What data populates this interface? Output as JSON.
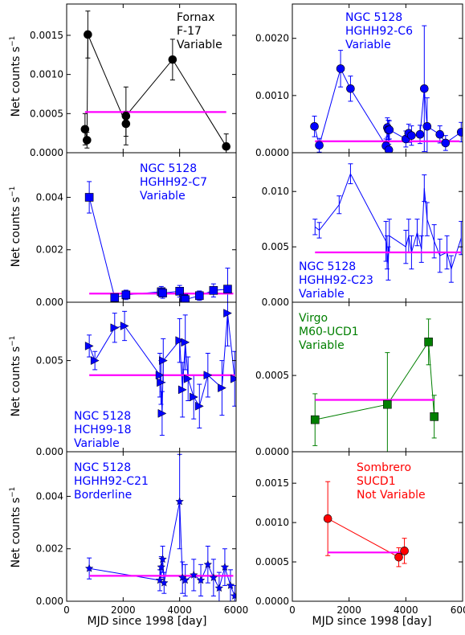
{
  "figure": {
    "ylabel_base": "Net counts s",
    "ylabel_exp": "−1",
    "xlabel": "MJD since 1998 [day]",
    "x_ticks": [
      "0",
      "2000",
      "4000",
      "6000"
    ]
  },
  "chart_data": [
    {
      "type": "scatter",
      "panel": "top-left",
      "annotation": [
        "Fornax",
        "F-17",
        "Variable"
      ],
      "color": "#000000",
      "marker": "circle",
      "xlim": [
        0,
        6000
      ],
      "ylim": [
        0,
        0.0019
      ],
      "yticks": [
        0.0,
        0.0005,
        0.001,
        0.0015
      ],
      "ytick_labels": [
        "0.0000",
        "0.0005",
        "0.0010",
        "0.0015"
      ],
      "constant_fit": {
        "y": 0.00052,
        "x_range": [
          650,
          5650
        ]
      },
      "points": [
        {
          "x": 650,
          "y": 0.0003,
          "err": 0.0002
        },
        {
          "x": 720,
          "y": 0.00016,
          "err": 0.0001
        },
        {
          "x": 750,
          "y": 0.00151,
          "err": 0.0003
        },
        {
          "x": 2100,
          "y": 0.00037,
          "err": 0.00016
        },
        {
          "x": 2100,
          "y": 0.00047,
          "err": 0.00037
        },
        {
          "x": 3750,
          "y": 0.00119,
          "err": 0.00026
        },
        {
          "x": 5650,
          "y": 8e-05,
          "err": 0.00016
        }
      ]
    },
    {
      "type": "scatter",
      "panel": "top-right",
      "annotation": [
        "NGC 5128",
        "HGHH92-C6",
        "Variable"
      ],
      "color": "#0000ff",
      "marker": "circle",
      "xlim": [
        0,
        6000
      ],
      "ylim": [
        0,
        0.0026
      ],
      "yticks": [
        0.0,
        0.001,
        0.002
      ],
      "ytick_labels": [
        "0.0000",
        "0.0010",
        "0.0020"
      ],
      "constant_fit": {
        "y": 0.0002,
        "x_range": [
          800,
          5900
        ]
      },
      "points": [
        {
          "x": 780,
          "y": 0.00046,
          "err": 0.00018
        },
        {
          "x": 950,
          "y": 0.00013,
          "err": 0.00012
        },
        {
          "x": 1700,
          "y": 0.00147,
          "err": 0.00032
        },
        {
          "x": 2050,
          "y": 0.00112,
          "err": 0.00022
        },
        {
          "x": 3300,
          "y": 0.00012,
          "err": 0.00012
        },
        {
          "x": 3350,
          "y": 0.00044,
          "err": 0.00017
        },
        {
          "x": 3380,
          "y": 0.0004,
          "err": 0.00017
        },
        {
          "x": 3400,
          "y": 5e-05,
          "err": 0.0001
        },
        {
          "x": 3420,
          "y": 0.0004,
          "err": 0.00016
        },
        {
          "x": 4000,
          "y": 0.00024,
          "err": 0.00014
        },
        {
          "x": 4100,
          "y": 0.00034,
          "err": 0.00016
        },
        {
          "x": 4200,
          "y": 0.0003,
          "err": 0.00017
        },
        {
          "x": 4500,
          "y": 0.00032,
          "err": 0.00016
        },
        {
          "x": 4650,
          "y": 0.00112,
          "err": 0.0011
        },
        {
          "x": 4750,
          "y": 0.00046,
          "err": 0.0005
        },
        {
          "x": 5200,
          "y": 0.00032,
          "err": 0.00015
        },
        {
          "x": 5400,
          "y": 0.00017,
          "err": 0.00013
        },
        {
          "x": 5950,
          "y": 0.00036,
          "err": 0.00017
        }
      ]
    },
    {
      "type": "scatter",
      "panel": "second-left",
      "annotation": [
        "NGC 5128",
        "HGHH92-C7",
        "Variable"
      ],
      "color": "#0000ff",
      "marker": "square",
      "xlim": [
        0,
        6000
      ],
      "ylim": [
        0,
        0.0057
      ],
      "yticks": [
        0.0,
        0.002,
        0.004
      ],
      "ytick_labels": [
        "0.000",
        "0.002",
        "0.004"
      ],
      "constant_fit": {
        "y": 0.00033,
        "x_range": [
          800,
          5900
        ]
      },
      "points": [
        {
          "x": 800,
          "y": 0.004,
          "err": 0.0006
        },
        {
          "x": 1700,
          "y": 0.00018,
          "err": 0.00015
        },
        {
          "x": 2100,
          "y": 0.00028,
          "err": 0.00018
        },
        {
          "x": 3350,
          "y": 0.0004,
          "err": 0.0002
        },
        {
          "x": 3400,
          "y": 0.00035,
          "err": 0.0002
        },
        {
          "x": 4000,
          "y": 0.00042,
          "err": 0.00022
        },
        {
          "x": 4150,
          "y": 0.00015,
          "err": 0.00015
        },
        {
          "x": 4200,
          "y": 0.0001,
          "err": 0.00012
        },
        {
          "x": 4700,
          "y": 0.00025,
          "err": 0.00018
        },
        {
          "x": 5200,
          "y": 0.00045,
          "err": 0.00025
        },
        {
          "x": 5700,
          "y": 0.0005,
          "err": 0.0008
        }
      ]
    },
    {
      "type": "line",
      "panel": "second-right",
      "annotation": [
        "NGC 5128",
        "HGHH92-C23",
        "Variable"
      ],
      "color": "#0000ff",
      "marker": "none",
      "xlim": [
        0,
        6000
      ],
      "ylim": [
        0,
        0.0135
      ],
      "yticks": [
        0.0,
        0.005,
        0.01
      ],
      "ytick_labels": [
        "0.000",
        "0.005",
        "0.010"
      ],
      "constant_fit": {
        "y": 0.0045,
        "x_range": [
          800,
          5950
        ]
      },
      "points": [
        {
          "x": 800,
          "y": 0.0068,
          "err": 0.0007
        },
        {
          "x": 950,
          "y": 0.0065,
          "err": 0.0007
        },
        {
          "x": 1650,
          "y": 0.0088,
          "err": 0.0008
        },
        {
          "x": 2050,
          "y": 0.0116,
          "err": 0.0009
        },
        {
          "x": 3300,
          "y": 0.0055,
          "err": 0.0018
        },
        {
          "x": 3340,
          "y": 0.0045,
          "err": 0.0015
        },
        {
          "x": 3380,
          "y": 0.0035,
          "err": 0.0015
        },
        {
          "x": 3420,
          "y": 0.006,
          "err": 0.0015
        },
        {
          "x": 4000,
          "y": 0.005,
          "err": 0.0015
        },
        {
          "x": 4100,
          "y": 0.006,
          "err": 0.0015
        },
        {
          "x": 4200,
          "y": 0.0045,
          "err": 0.0015
        },
        {
          "x": 4400,
          "y": 0.0063,
          "err": 0.0012
        },
        {
          "x": 4550,
          "y": 0.0048,
          "err": 0.0012
        },
        {
          "x": 4650,
          "y": 0.0103,
          "err": 0.0012
        },
        {
          "x": 4750,
          "y": 0.0075,
          "err": 0.0015
        },
        {
          "x": 5000,
          "y": 0.0055,
          "err": 0.0015
        },
        {
          "x": 5200,
          "y": 0.0042,
          "err": 0.0015
        },
        {
          "x": 5450,
          "y": 0.0045,
          "err": 0.0015
        },
        {
          "x": 5600,
          "y": 0.003,
          "err": 0.0012
        },
        {
          "x": 5950,
          "y": 0.0058,
          "err": 0.0015
        }
      ]
    },
    {
      "type": "scatter",
      "panel": "third-left",
      "annotation": [
        "NGC 5128",
        "HCH99-18",
        "Variable"
      ],
      "color": "#0000ff",
      "marker": "triangle-right",
      "xlim": [
        0,
        6000
      ],
      "ylim": [
        0,
        0.0082
      ],
      "yticks": [
        0.0,
        0.005
      ],
      "ytick_labels": [
        "0.000",
        "0.005"
      ],
      "constant_fit": {
        "y": 0.0042,
        "x_range": [
          800,
          5950
        ]
      },
      "points": [
        {
          "x": 800,
          "y": 0.0058,
          "err": 0.0006
        },
        {
          "x": 1000,
          "y": 0.005,
          "err": 0.0005
        },
        {
          "x": 1700,
          "y": 0.0068,
          "err": 0.0008
        },
        {
          "x": 2050,
          "y": 0.0069,
          "err": 0.0008
        },
        {
          "x": 3300,
          "y": 0.0042,
          "err": 0.0012
        },
        {
          "x": 3340,
          "y": 0.0038,
          "err": 0.0012
        },
        {
          "x": 3380,
          "y": 0.0021,
          "err": 0.0012
        },
        {
          "x": 3420,
          "y": 0.005,
          "err": 0.0012
        },
        {
          "x": 4000,
          "y": 0.0061,
          "err": 0.0012
        },
        {
          "x": 4100,
          "y": 0.0034,
          "err": 0.0015
        },
        {
          "x": 4200,
          "y": 0.006,
          "err": 0.0015
        },
        {
          "x": 4300,
          "y": 0.004,
          "err": 0.0012
        },
        {
          "x": 4500,
          "y": 0.003,
          "err": 0.0012
        },
        {
          "x": 4700,
          "y": 0.0025,
          "err": 0.0012
        },
        {
          "x": 5000,
          "y": 0.0042,
          "err": 0.0012
        },
        {
          "x": 5500,
          "y": 0.0035,
          "err": 0.0015
        },
        {
          "x": 5700,
          "y": 0.0076,
          "err": 0.0018
        },
        {
          "x": 5950,
          "y": 0.004,
          "err": 0.0015
        }
      ]
    },
    {
      "type": "scatter",
      "panel": "third-right",
      "annotation": [
        "Virgo",
        "M60-UCD1",
        "Variable"
      ],
      "color": "#007f00",
      "marker": "square",
      "xlim": [
        0,
        6000
      ],
      "ylim": [
        0,
        0.00098
      ],
      "yticks": [
        0.0,
        0.0005
      ],
      "ytick_labels": [
        "0.0000",
        "0.0005"
      ],
      "constant_fit": {
        "y": 0.00034,
        "x_range": [
          800,
          5000
        ]
      },
      "points": [
        {
          "x": 800,
          "y": 0.00021,
          "err": 0.00017
        },
        {
          "x": 3350,
          "y": 0.00031,
          "err": 0.00034
        },
        {
          "x": 4800,
          "y": 0.00072,
          "err": 0.00015
        },
        {
          "x": 5000,
          "y": 0.00023,
          "err": 0.00014
        }
      ]
    },
    {
      "type": "scatter",
      "panel": "bottom-left",
      "annotation": [
        "NGC 5128",
        "HGHH92-C21",
        "Borderline"
      ],
      "color": "#0000ff",
      "marker": "star",
      "xlim": [
        0,
        6000
      ],
      "ylim": [
        0,
        0.0057
      ],
      "yticks": [
        0.0,
        0.002,
        0.004
      ],
      "ytick_labels": [
        "0.000",
        "0.002",
        "0.004"
      ],
      "constant_fit": {
        "y": 0.00097,
        "x_range": [
          800,
          5900
        ]
      },
      "points": [
        {
          "x": 800,
          "y": 0.00125,
          "err": 0.0004
        },
        {
          "x": 3300,
          "y": 0.0008,
          "err": 0.0004
        },
        {
          "x": 3350,
          "y": 0.0013,
          "err": 0.0004
        },
        {
          "x": 3400,
          "y": 0.0016,
          "err": 0.0005
        },
        {
          "x": 3450,
          "y": 0.0007,
          "err": 0.0004
        },
        {
          "x": 4000,
          "y": 0.0038,
          "err": 0.0018
        },
        {
          "x": 4100,
          "y": 0.0009,
          "err": 0.0006
        },
        {
          "x": 4200,
          "y": 0.0008,
          "err": 0.0006
        },
        {
          "x": 4500,
          "y": 0.001,
          "err": 0.0006
        },
        {
          "x": 4750,
          "y": 0.0008,
          "err": 0.0006
        },
        {
          "x": 5000,
          "y": 0.0014,
          "err": 0.0007
        },
        {
          "x": 5200,
          "y": 0.0009,
          "err": 0.0007
        },
        {
          "x": 5400,
          "y": 0.0005,
          "err": 0.0006
        },
        {
          "x": 5600,
          "y": 0.0013,
          "err": 0.0007
        },
        {
          "x": 5800,
          "y": 0.0006,
          "err": 0.0006
        },
        {
          "x": 5950,
          "y": 0.0002,
          "err": 0.0004
        }
      ]
    },
    {
      "type": "scatter",
      "panel": "bottom-right",
      "annotation": [
        "Sombrero",
        "SUCD1",
        "Not Variable"
      ],
      "color": "#ff0000",
      "marker": "circle",
      "xlim": [
        0,
        6000
      ],
      "ylim": [
        0,
        0.0019
      ],
      "yticks": [
        0.0,
        0.0005,
        0.001,
        0.0015
      ],
      "ytick_labels": [
        "0.0000",
        "0.0005",
        "0.0010",
        "0.0015"
      ],
      "constant_fit": {
        "y": 0.00062,
        "x_range": [
          1250,
          3950
        ]
      },
      "points": [
        {
          "x": 1250,
          "y": 0.00105,
          "err": 0.00047
        },
        {
          "x": 3750,
          "y": 0.00056,
          "err": 0.00012
        },
        {
          "x": 3950,
          "y": 0.00064,
          "err": 0.00016
        }
      ]
    }
  ]
}
